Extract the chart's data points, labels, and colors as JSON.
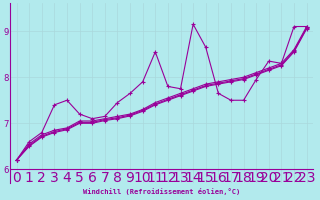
{
  "xlabel": "Windchill (Refroidissement éolien,°C)",
  "background_color": "#b2eaed",
  "line_color": "#990099",
  "grid_color": "#c8e8eb",
  "xlim": [
    -0.5,
    23.5
  ],
  "ylim": [
    5.7,
    9.6
  ],
  "xticks": [
    0,
    1,
    2,
    3,
    4,
    5,
    6,
    7,
    8,
    9,
    10,
    11,
    12,
    13,
    14,
    15,
    16,
    17,
    18,
    19,
    20,
    21,
    22,
    23
  ],
  "yticks": [
    6,
    7,
    8,
    9
  ],
  "series_lines": [
    {
      "x": [
        0,
        1,
        2,
        3,
        4,
        5,
        6,
        7,
        8,
        9,
        10,
        11,
        12,
        13,
        14,
        15,
        16,
        17,
        18,
        19,
        20,
        21,
        22,
        23
      ],
      "y": [
        6.2,
        6.6,
        6.8,
        7.4,
        7.5,
        7.2,
        7.1,
        7.15,
        7.45,
        7.65,
        7.9,
        8.55,
        7.8,
        7.75,
        9.15,
        8.65,
        7.65,
        7.5,
        7.5,
        7.95,
        8.35,
        8.3,
        9.1,
        9.1
      ]
    },
    {
      "x": [
        0,
        1,
        2,
        3,
        4,
        5,
        6,
        7,
        8,
        9,
        10,
        11,
        12,
        13,
        14,
        15,
        16,
        17,
        18,
        19,
        20,
        21,
        22,
        23
      ],
      "y": [
        6.2,
        6.55,
        6.75,
        6.85,
        6.9,
        7.05,
        7.05,
        7.1,
        7.15,
        7.2,
        7.3,
        7.45,
        7.55,
        7.65,
        7.75,
        7.85,
        7.9,
        7.95,
        8.0,
        8.1,
        8.2,
        8.3,
        8.6,
        9.1
      ]
    },
    {
      "x": [
        0,
        1,
        2,
        3,
        4,
        5,
        6,
        7,
        8,
        9,
        10,
        11,
        12,
        13,
        14,
        15,
        16,
        17,
        18,
        19,
        20,
        21,
        22,
        23
      ],
      "y": [
        6.2,
        6.52,
        6.72,
        6.82,
        6.88,
        7.02,
        7.02,
        7.08,
        7.12,
        7.18,
        7.28,
        7.42,
        7.52,
        7.62,
        7.72,
        7.82,
        7.87,
        7.92,
        7.97,
        8.07,
        8.17,
        8.27,
        8.57,
        9.07
      ]
    },
    {
      "x": [
        0,
        1,
        2,
        3,
        4,
        5,
        6,
        7,
        8,
        9,
        10,
        11,
        12,
        13,
        14,
        15,
        16,
        17,
        18,
        19,
        20,
        21,
        22,
        23
      ],
      "y": [
        6.2,
        6.5,
        6.7,
        6.8,
        6.86,
        7.0,
        7.0,
        7.06,
        7.1,
        7.16,
        7.26,
        7.4,
        7.5,
        7.6,
        7.7,
        7.8,
        7.85,
        7.9,
        7.95,
        8.05,
        8.15,
        8.25,
        8.55,
        9.05
      ]
    }
  ]
}
